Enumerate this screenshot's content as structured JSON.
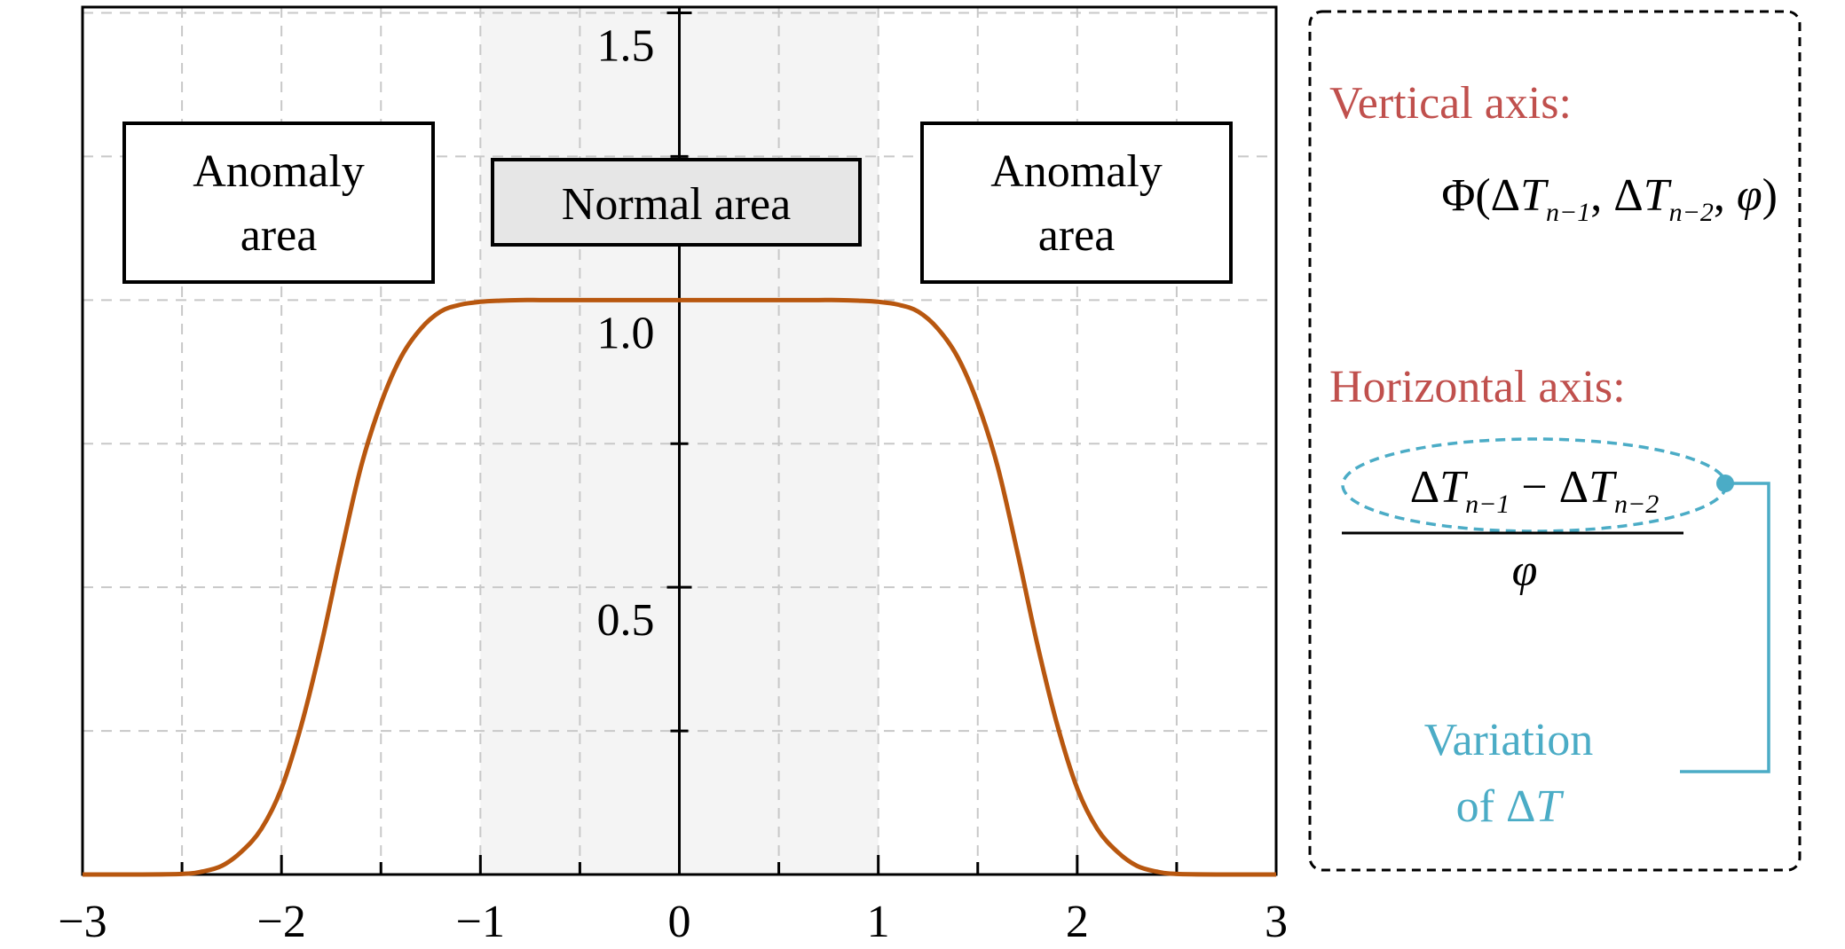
{
  "chart_data": {
    "type": "line",
    "title": "",
    "xlabel": "",
    "ylabel": "",
    "xlim": [
      -3,
      3
    ],
    "ylim": [
      0,
      1.5
    ],
    "grid": true,
    "x_ticks": [
      -3,
      -2,
      -1,
      0,
      1,
      2,
      3
    ],
    "x_tick_labels": [
      "−3",
      "−2",
      "−1",
      "0",
      "1",
      "2",
      "3"
    ],
    "y_tick_labels_shown": [
      {
        "value": 0.5,
        "label": "0.5"
      },
      {
        "value": 1.0,
        "label": "1.0"
      },
      {
        "value": 1.5,
        "label": "1.5"
      }
    ],
    "shaded_region": {
      "x": [
        -1,
        1
      ],
      "color": "#f4f4f4"
    },
    "series": [
      {
        "color": "#b8570f",
        "x": [
          -3,
          -2.75,
          -2.5,
          -2.4,
          -2.3,
          -2.2,
          -2.1,
          -2.0,
          -1.9,
          -1.8,
          -1.7,
          -1.6,
          -1.5,
          -1.4,
          -1.3,
          -1.2,
          -1.1,
          -1.0,
          -0.9,
          -0.8,
          -0.7,
          -0.6,
          0,
          0.6,
          0.7,
          0.8,
          0.9,
          1.0,
          1.1,
          1.2,
          1.3,
          1.4,
          1.5,
          1.6,
          1.7,
          1.8,
          1.9,
          2.0,
          2.1,
          2.2,
          2.3,
          2.4,
          2.5,
          2.75,
          3
        ],
        "y": [
          0,
          0,
          0.001,
          0.005,
          0.015,
          0.04,
          0.08,
          0.15,
          0.26,
          0.4,
          0.56,
          0.71,
          0.82,
          0.9,
          0.95,
          0.98,
          0.992,
          0.997,
          0.999,
          1.0,
          1.0,
          1.0,
          1.0,
          1.0,
          1.0,
          1.0,
          0.999,
          0.997,
          0.992,
          0.98,
          0.95,
          0.9,
          0.82,
          0.71,
          0.56,
          0.4,
          0.26,
          0.15,
          0.08,
          0.04,
          0.015,
          0.005,
          0.001,
          0,
          0
        ]
      }
    ]
  },
  "annotations": {
    "left_box": {
      "line1": "Anomaly",
      "line2": "area"
    },
    "center_box": {
      "label": "Normal area"
    },
    "right_box": {
      "line1": "Anomaly",
      "line2": "area"
    }
  },
  "legend_panel": {
    "vertical_title": "Vertical axis:",
    "vertical_formula": {
      "phi": "Φ(",
      "delta1": "Δ",
      "T1": "T",
      "sub1": "n−1",
      "sep1": ", ",
      "delta2": "Δ",
      "T2": "T",
      "sub2": "n−2",
      "sep2": ", ",
      "varphi": "φ",
      "close": ")"
    },
    "horizontal_title": "Horizontal axis:",
    "horizontal_formula": {
      "delta1": "Δ",
      "T1": "T",
      "sub1": "n−1",
      "minus": " − ",
      "delta2": "Δ",
      "T2": "T",
      "sub2": "n−2",
      "denominator": "φ"
    },
    "variation_line1": "Variation",
    "variation_prefix": "of Δ",
    "variation_T": "T"
  },
  "colors": {
    "curve": "#b8570f",
    "title_red": "#c0504d",
    "teal": "#4bacc6",
    "grid": "#c8c8c8",
    "box_fill_center": "#e6e6e6"
  }
}
